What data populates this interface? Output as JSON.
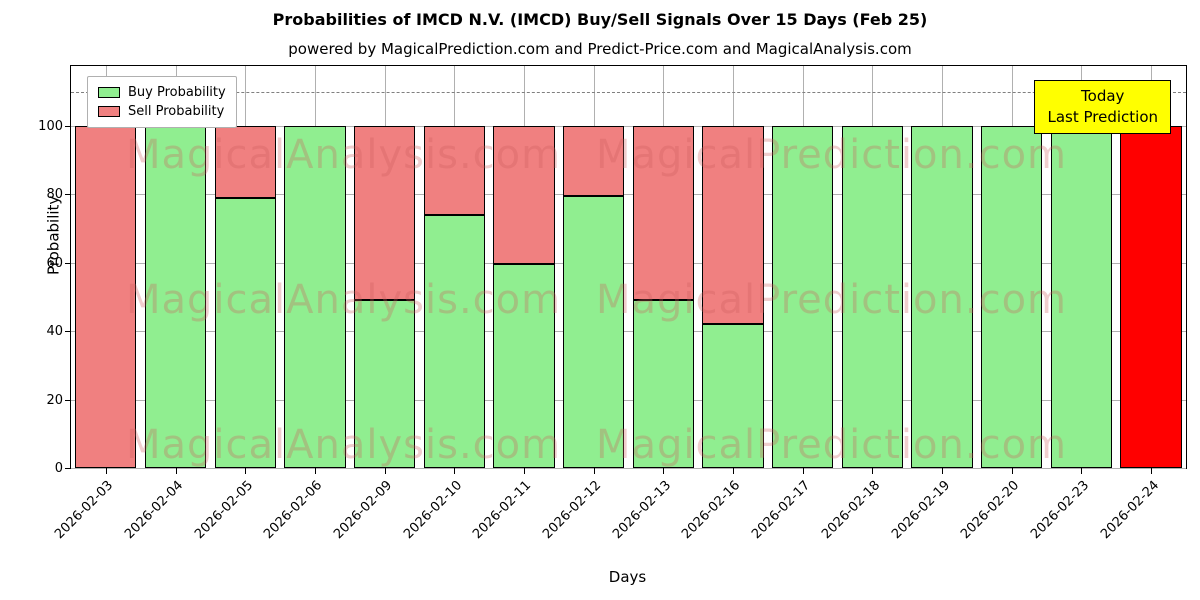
{
  "header": {
    "title": "Probabilities of IMCD N.V. (IMCD) Buy/Sell Signals Over 15 Days (Feb 25)",
    "subtitle": "powered by MagicalPrediction.com and Predict-Price.com and MagicalAnalysis.com"
  },
  "chart_data": {
    "type": "bar",
    "stacked": true,
    "title": "Probabilities of IMCD N.V. (IMCD) Buy/Sell Signals Over 15 Days (Feb 25)",
    "xlabel": "Days",
    "ylabel": "Probability",
    "categories": [
      "2026-02-03",
      "2026-02-04",
      "2026-02-05",
      "2026-02-06",
      "2026-02-09",
      "2026-02-10",
      "2026-02-11",
      "2026-02-12",
      "2026-02-13",
      "2026-02-16",
      "2026-02-17",
      "2026-02-18",
      "2026-02-19",
      "2026-02-20",
      "2026-02-23",
      "2026-02-24"
    ],
    "series": [
      {
        "name": "Buy Probability",
        "color": "#90EE90",
        "values": [
          0,
          100,
          79,
          100,
          49,
          74,
          59.5,
          79.5,
          49,
          42,
          100,
          100,
          100,
          100,
          100,
          0
        ]
      },
      {
        "name": "Sell Probability",
        "color": "#F08080",
        "values": [
          100,
          0,
          21,
          0,
          51,
          26,
          40.5,
          20.5,
          51,
          58,
          0,
          0,
          0,
          0,
          0,
          100
        ]
      }
    ],
    "ylim": [
      0,
      117.5
    ],
    "yticks": [
      0,
      20,
      40,
      60,
      80,
      100
    ],
    "grid": true,
    "legend_position": "upper left",
    "dashed_line_y": 110,
    "today": {
      "index": 15,
      "color": "#FF0000",
      "line1": "Today",
      "line2": "Last Prediction"
    },
    "watermarks": [
      "MagicalAnalysis.com",
      "MagicalPrediction.com"
    ]
  }
}
